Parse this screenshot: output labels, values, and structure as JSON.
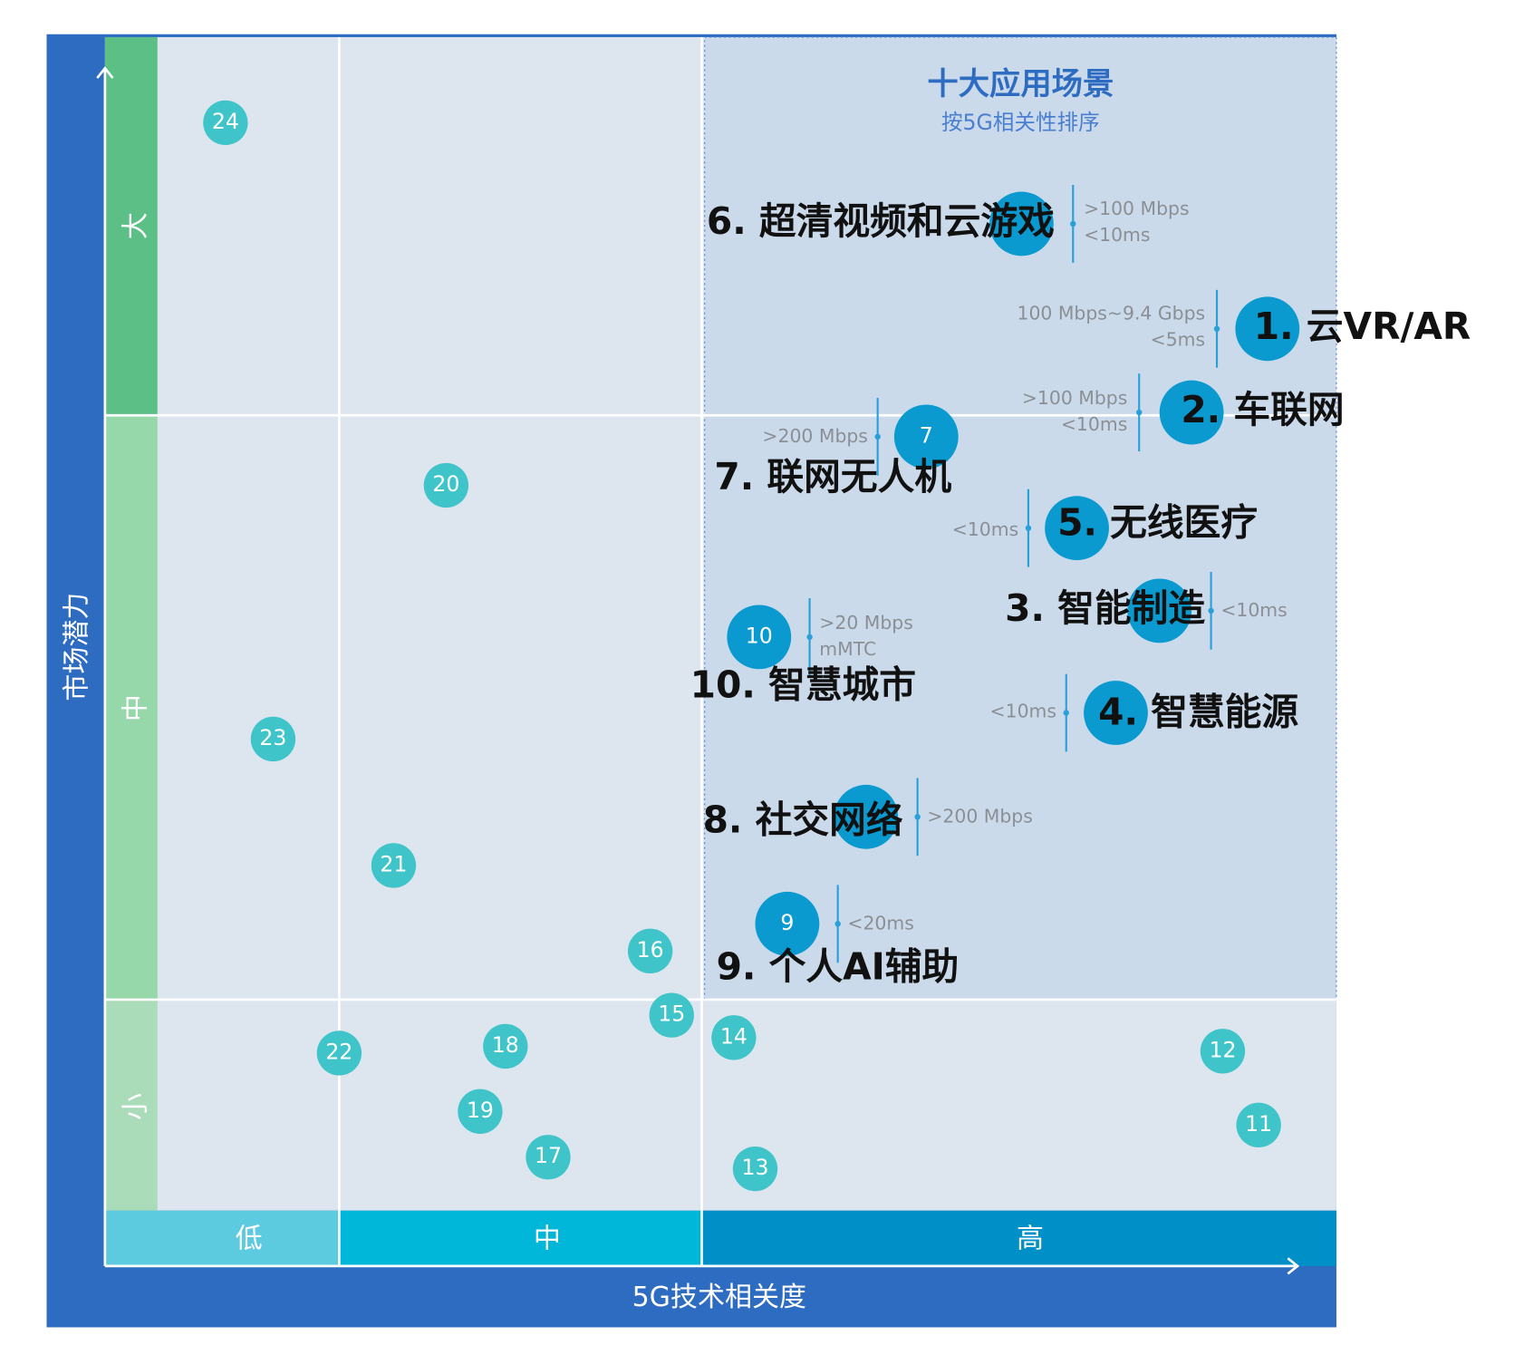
{
  "title": "十大应用场景",
  "subtitle": "按5G相关性排序",
  "y_axis": {
    "label": "市场潜力",
    "levels": [
      "大",
      "中",
      "小"
    ]
  },
  "x_axis": {
    "label": "5G技术相关度",
    "levels": [
      "低",
      "中",
      "高"
    ]
  },
  "nodes": [
    {
      "badge": "24"
    },
    {
      "badge": "20"
    },
    {
      "badge": "23"
    },
    {
      "badge": "21"
    },
    {
      "badge": "16"
    },
    {
      "badge": "15"
    },
    {
      "badge": "22"
    },
    {
      "badge": "18"
    },
    {
      "badge": "19"
    },
    {
      "badge": "17"
    },
    {
      "badge": "14"
    },
    {
      "badge": "13"
    },
    {
      "badge": "12"
    },
    {
      "badge": "11"
    },
    {
      "label": "6. 超清视频和云游戏",
      "specs": [
        ">100 Mbps",
        "<10ms"
      ]
    },
    {
      "label": "1. 云VR/AR",
      "specs": [
        "100 Mbps~9.4 Gbps",
        "<5ms"
      ]
    },
    {
      "label": "2. 车联网",
      "specs": [
        ">100 Mbps",
        "<10ms"
      ]
    },
    {
      "badge": "7",
      "label": "7. 联网无人机",
      "specs": [
        ">200 Mbps"
      ]
    },
    {
      "label": "5. 无线医疗",
      "specs": [
        "<10ms"
      ]
    },
    {
      "label": "3. 智能制造",
      "specs": [
        "<10ms"
      ]
    },
    {
      "badge": "10",
      "label": "10. 智慧城市",
      "specs": [
        ">20 Mbps",
        "mMTC"
      ]
    },
    {
      "label": "4. 智慧能源",
      "specs": [
        "<10ms"
      ]
    },
    {
      "label": "8. 社交网络",
      "specs": [
        ">200 Mbps"
      ]
    },
    {
      "badge": "9",
      "label": "9. 个人AI辅助",
      "specs": [
        "<20ms"
      ]
    }
  ]
}
